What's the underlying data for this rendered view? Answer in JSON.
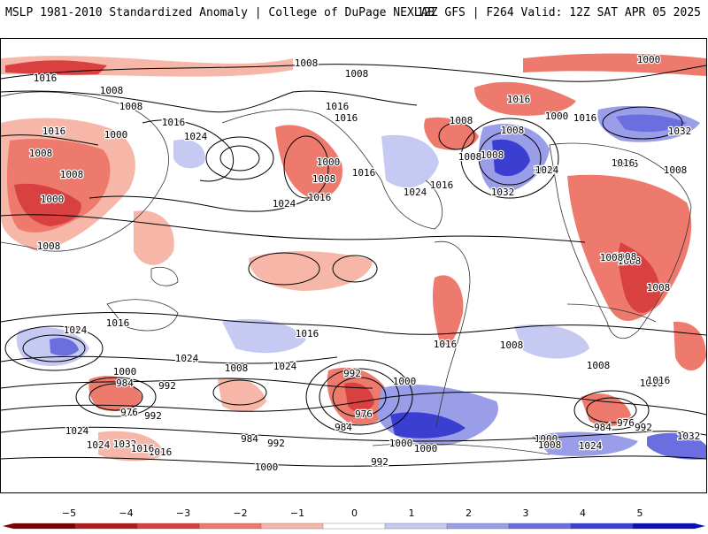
{
  "header": {
    "title": "MSLP 1981-2010 Standardized Anomaly | College of DuPage NEXLAB",
    "run_info": "12Z GFS | F264 Valid: 12Z SAT APR 05 2025"
  },
  "contour_labels": [
    "1000",
    "1008",
    "1016",
    "1008",
    "1008",
    "1008",
    "1016",
    "1016",
    "1024",
    "1000",
    "1008",
    "1008",
    "1016",
    "1016",
    "1016",
    "1008",
    "1000",
    "1008",
    "1008",
    "1000",
    "1008",
    "1008",
    "1016",
    "1024",
    "1016",
    "1024",
    "1016",
    "1024",
    "1000",
    "1008",
    "1016",
    "1032",
    "1008",
    "1024",
    "1032",
    "1016",
    "1008",
    "1008",
    "1008",
    "1008",
    "1016",
    "1024",
    "1016",
    "1016",
    "1024",
    "1016",
    "1008",
    "1024",
    "1000",
    "984",
    "992",
    "976",
    "992",
    "1000",
    "1024",
    "1032",
    "1016",
    "1008",
    "1008",
    "992",
    "976",
    "984",
    "1000",
    "1008",
    "984",
    "992",
    "1000",
    "992",
    "1000",
    "984",
    "976",
    "992",
    "1024",
    "1032",
    "1016",
    "1008",
    "1016",
    "1000",
    "1016",
    "1024"
  ],
  "colorbar": {
    "ticks": [
      "−5",
      "−4",
      "−3",
      "−2",
      "−1",
      "0",
      "1",
      "2",
      "3",
      "4",
      "5"
    ],
    "colors": {
      "neg5": "#7a0000",
      "neg4": "#b01c1c",
      "neg3": "#d94040",
      "neg2": "#ee7a6e",
      "neg1": "#f7b7a8",
      "zero": "#ffffff",
      "pos1": "#c6c9f2",
      "pos2": "#9a9ee8",
      "pos3": "#6a6ede",
      "pos4": "#3a3fd2",
      "pos5": "#0a10b8"
    }
  },
  "icons": {
    "map": "world-map-icon"
  }
}
